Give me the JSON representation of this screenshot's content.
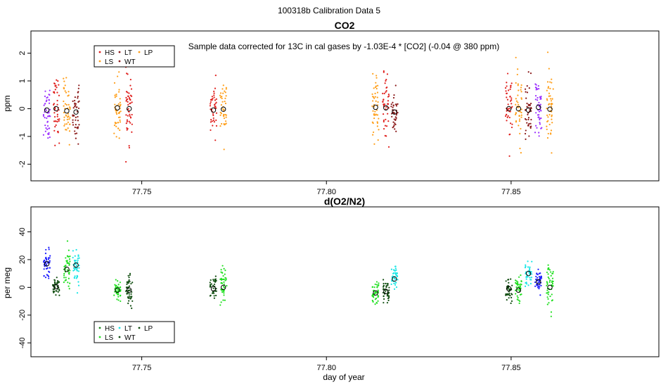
{
  "figure": {
    "supertitle": "100318b   Calibration Data 5",
    "xlabel": "day of year"
  },
  "chart_data": [
    {
      "type": "scatter",
      "title": "CO2",
      "annotation": "Sample data corrected for 13C in cal gases by -1.03E-4 * [CO2] (-0.04 @ 380 ppm)",
      "xlabel": "",
      "ylabel": "ppm",
      "xlim": [
        77.72,
        77.89
      ],
      "ylim": [
        -2.6,
        2.8
      ],
      "xticks": [
        77.75,
        77.8,
        77.85
      ],
      "xtick_labels": [
        "77.75",
        "77.80",
        "77.85"
      ],
      "yticks": [
        -2,
        -1,
        0,
        1,
        2
      ],
      "ytick_labels": [
        "-2",
        "-1",
        "0",
        "1",
        "2"
      ],
      "grid": false,
      "legend": {
        "placement": "top-left",
        "columns": [
          [
            "HS",
            "LS"
          ],
          [
            "LT",
            "WT"
          ],
          [
            "LP"
          ]
        ],
        "colors": {
          "HS": "#e0201e",
          "LS": "#ff9f1a",
          "LT": "#8b1a1a",
          "WT": "#8b1a1a",
          "LP": "#ff9f1a"
        }
      },
      "clusters": [
        {
          "x": 77.7243,
          "color": "#9b30ff",
          "mean": -0.05,
          "spread": 0.55,
          "n": 45
        },
        {
          "x": 77.7268,
          "color": "#e0201e",
          "mean": 0.0,
          "spread": 0.55,
          "n": 45
        },
        {
          "x": 77.7297,
          "color": "#ff9f1a",
          "mean": -0.08,
          "spread": 0.55,
          "n": 45
        },
        {
          "x": 77.7322,
          "color": "#8b1a1a",
          "mean": -0.12,
          "spread": 0.5,
          "n": 45
        },
        {
          "x": 77.7434,
          "color": "#ff9f1a",
          "mean": 0.03,
          "spread": 0.6,
          "n": 50
        },
        {
          "x": 77.7466,
          "color": "#e0201e",
          "mean": 0.0,
          "spread": 0.55,
          "n": 50
        },
        {
          "x": 77.7694,
          "color": "#e0201e",
          "mean": -0.05,
          "spread": 0.45,
          "n": 40
        },
        {
          "x": 77.7721,
          "color": "#ff9f1a",
          "mean": -0.02,
          "spread": 0.5,
          "n": 40
        },
        {
          "x": 77.8133,
          "color": "#ff9f1a",
          "mean": 0.05,
          "spread": 0.55,
          "n": 45
        },
        {
          "x": 77.8161,
          "color": "#e0201e",
          "mean": 0.03,
          "spread": 0.55,
          "n": 45
        },
        {
          "x": 77.8184,
          "color": "#8b1a1a",
          "mean": -0.12,
          "spread": 0.5,
          "n": 40
        },
        {
          "x": 77.8494,
          "color": "#e0201e",
          "mean": 0.0,
          "spread": 0.6,
          "n": 45
        },
        {
          "x": 77.852,
          "color": "#ff9f1a",
          "mean": 0.0,
          "spread": 0.6,
          "n": 45
        },
        {
          "x": 77.8547,
          "color": "#8b1a1a",
          "mean": -0.05,
          "spread": 0.55,
          "n": 45
        },
        {
          "x": 77.8574,
          "color": "#9b30ff",
          "mean": 0.05,
          "spread": 0.5,
          "n": 45
        },
        {
          "x": 77.8605,
          "color": "#ff9f1a",
          "mean": -0.02,
          "spread": 0.65,
          "n": 50
        }
      ]
    },
    {
      "type": "scatter",
      "title": "d(O2/N2)",
      "annotation": "",
      "xlabel": "day of year",
      "ylabel": "per meg",
      "xlim": [
        77.72,
        77.89
      ],
      "ylim": [
        -50,
        58
      ],
      "xticks": [
        77.75,
        77.8,
        77.85
      ],
      "xtick_labels": [
        "77.75",
        "77.80",
        "77.85"
      ],
      "yticks": [
        -40,
        -20,
        0,
        20,
        40
      ],
      "ytick_labels": [
        "-40",
        "-20",
        "0",
        "20",
        "40"
      ],
      "grid": false,
      "legend": {
        "placement": "bottom-left",
        "columns": [
          [
            "HS",
            "LS"
          ],
          [
            "LT",
            "WT"
          ],
          [
            "LP"
          ]
        ],
        "colors": {
          "HS": "#1c8a1c",
          "LS": "#22e022",
          "LT": "#19e6e6",
          "WT": "#0f4d0f",
          "LP": "#0f4d0f"
        }
      },
      "clusters": [
        {
          "x": 77.7243,
          "color": "#1c1cff",
          "mean": 17,
          "spread": 5,
          "n": 45
        },
        {
          "x": 77.7268,
          "color": "#0f4d0f",
          "mean": 0.5,
          "spread": 3,
          "n": 40
        },
        {
          "x": 77.7297,
          "color": "#22e022",
          "mean": 13,
          "spread": 8,
          "n": 45
        },
        {
          "x": 77.7322,
          "color": "#19e6e6",
          "mean": 16,
          "spread": 7,
          "n": 45
        },
        {
          "x": 77.7434,
          "color": "#22e022",
          "mean": -2,
          "spread": 4,
          "n": 45
        },
        {
          "x": 77.7466,
          "color": "#0f4d0f",
          "mean": -2,
          "spread": 5,
          "n": 45
        },
        {
          "x": 77.7694,
          "color": "#0f4d0f",
          "mean": -1,
          "spread": 5,
          "n": 40
        },
        {
          "x": 77.7721,
          "color": "#22e022",
          "mean": 0,
          "spread": 7,
          "n": 45
        },
        {
          "x": 77.8133,
          "color": "#22e022",
          "mean": -4,
          "spread": 5,
          "n": 45
        },
        {
          "x": 77.8161,
          "color": "#0f4d0f",
          "mean": -3,
          "spread": 4,
          "n": 40
        },
        {
          "x": 77.8184,
          "color": "#19e6e6",
          "mean": 6,
          "spread": 4,
          "n": 40
        },
        {
          "x": 77.8494,
          "color": "#0f4d0f",
          "mean": -1,
          "spread": 4,
          "n": 40
        },
        {
          "x": 77.852,
          "color": "#22e022",
          "mean": -2,
          "spread": 5,
          "n": 40
        },
        {
          "x": 77.8547,
          "color": "#19e6e6",
          "mean": 10,
          "spread": 4,
          "n": 40
        },
        {
          "x": 77.8574,
          "color": "#1c1cff",
          "mean": 4,
          "spread": 4,
          "n": 40
        },
        {
          "x": 77.8605,
          "color": "#22e022",
          "mean": 0,
          "spread": 8,
          "n": 50
        }
      ]
    }
  ]
}
